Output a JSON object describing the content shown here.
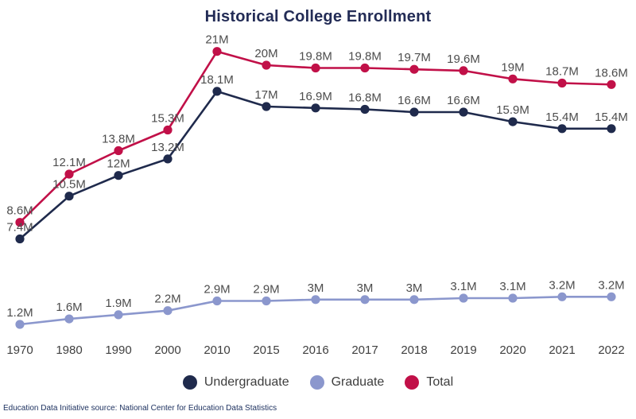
{
  "title": "Historical College Enrollment",
  "footer": "Education Data Initiative source: National Center for Education Data Statistics",
  "colors": {
    "undergraduate": "#1f2a4c",
    "graduate": "#8b97cd",
    "total": "#c11048",
    "data_label": "#4d4d4d",
    "axis_label": "#3f3f3f",
    "title": "#232c56",
    "footer": "#1b2f5e",
    "background": "#ffffff"
  },
  "legend": {
    "items": [
      {
        "label": "Undergraduate",
        "color": "#1f2a4c"
      },
      {
        "label": "Graduate",
        "color": "#8b97cd"
      },
      {
        "label": "Total",
        "color": "#c11048"
      }
    ]
  },
  "chart_data": {
    "type": "line",
    "title": "Historical College Enrollment",
    "categories": [
      "1970",
      "1980",
      "1990",
      "2000",
      "2010",
      "2015",
      "2016",
      "2017",
      "2018",
      "2019",
      "2020",
      "2021",
      "2022"
    ],
    "series": [
      {
        "name": "Undergraduate",
        "color": "#1f2a4c",
        "values": [
          7.4,
          10.5,
          12,
          13.2,
          18.1,
          17,
          16.9,
          16.8,
          16.6,
          16.6,
          15.9,
          15.4,
          15.4
        ],
        "labels": [
          "7.4M",
          "10.5M",
          "12M",
          "13.2M",
          "18.1M",
          "17M",
          "16.9M",
          "16.8M",
          "16.6M",
          "16.6M",
          "15.9M",
          "15.4M",
          "15.4M"
        ]
      },
      {
        "name": "Graduate",
        "color": "#8b97cd",
        "values": [
          1.2,
          1.6,
          1.9,
          2.2,
          2.9,
          2.9,
          3,
          3,
          3,
          3.1,
          3.1,
          3.2,
          3.2
        ],
        "labels": [
          "1.2M",
          "1.6M",
          "1.9M",
          "2.2M",
          "2.9M",
          "2.9M",
          "3M",
          "3M",
          "3M",
          "3.1M",
          "3.1M",
          "3.2M",
          "3.2M"
        ]
      },
      {
        "name": "Total",
        "color": "#c11048",
        "values": [
          8.6,
          12.1,
          13.8,
          15.3,
          21,
          20,
          19.8,
          19.8,
          19.7,
          19.6,
          19,
          18.7,
          18.6
        ],
        "labels": [
          "8.6M",
          "12.1M",
          "13.8M",
          "15.3M",
          "21M",
          "20M",
          "19.8M",
          "19.8M",
          "19.7M",
          "19.6M",
          "19M",
          "18.7M",
          "18.6M"
        ]
      }
    ],
    "ylim": [
      0,
      24
    ],
    "grid": false,
    "legend_position": "bottom",
    "xlabel": "",
    "ylabel": ""
  }
}
